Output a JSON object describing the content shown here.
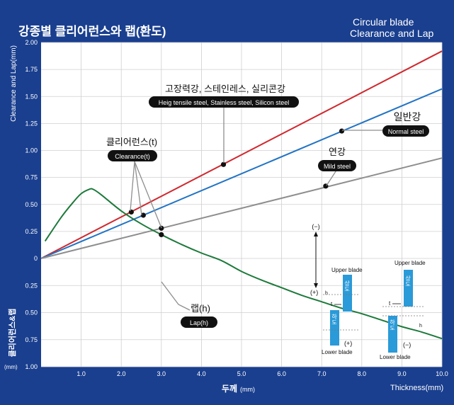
{
  "title_ko": "강종별 클리어런스와 랩(환도)",
  "title_en_line1": "Circular blade",
  "title_en_line2": "Clearance and Lap",
  "ylabel_top": "Clearance and Lap(mm)",
  "ylabel_bottom_ko": "클리어런스&랩",
  "ylabel_bottom_unit": "(mm)",
  "xlabel_ko": "두께",
  "xlabel_ko_unit": "(mm)",
  "xlabel_en": "Thickness(mm)",
  "callouts": {
    "hts_ko": "고장력강, 스테인레스, 실리콘강",
    "hts_en": "Heig tensile steel, Stainless steel, Silicon steel",
    "normal_ko": "일반강",
    "normal_en": "Normal steel",
    "mild_ko": "연강",
    "mild_en": "Mild steel",
    "clearance_ko": "클리어런스(t)",
    "clearance_en": "Clearance(t)",
    "lap_ko": "랩(h)",
    "lap_en": "Lap(h)"
  },
  "inset": {
    "minus_top": "(−)",
    "plus_left": "(+)",
    "t_label": "t",
    "h_label_a": "h",
    "h_label_b": "h",
    "upper_ko": "상도",
    "lower_ko": "하도",
    "upper_en": "Upper blade",
    "lower_en": "Lower blade",
    "plus_right": "(+)",
    "minus_right": "(−)"
  },
  "colors": {
    "background": "#1a3f8f",
    "plot": "#ffffff",
    "hts": "#d0282e",
    "normal": "#2173c4",
    "mild": "#8e8e8e",
    "lap": "#1c7a3a",
    "blade": "#2a9ad8"
  },
  "chart_data": {
    "type": "line",
    "xlim": [
      0,
      10
    ],
    "x_ticks": [
      "1.0",
      "2.0",
      "3.0",
      "4.0",
      "5.0",
      "6.0",
      "7.0",
      "8.0",
      "9.0",
      "10.0"
    ],
    "y_ticks_top": [
      "2.00",
      "1.75",
      "1.50",
      "1.25",
      "1.00",
      "0.75",
      "0.50",
      "0.25"
    ],
    "y_tick_zero": "0",
    "y_ticks_bottom": [
      "0.25",
      "0.50",
      "0.75",
      "1.00"
    ],
    "clearance_ylim": [
      0,
      2
    ],
    "lap_ylim": [
      0,
      1
    ],
    "grid": true,
    "series": [
      {
        "key": "hts",
        "x": [
          0,
          10
        ],
        "y": [
          0,
          1.92
        ]
      },
      {
        "key": "normal",
        "x": [
          0,
          10
        ],
        "y": [
          0,
          1.57
        ]
      },
      {
        "key": "mild",
        "x": [
          0,
          10
        ],
        "y": [
          0,
          0.93
        ]
      },
      {
        "key": "lap",
        "x": [
          0.1,
          0.5,
          0.8,
          1.0,
          1.2,
          1.3,
          1.5,
          2.0,
          2.5,
          3.0,
          3.5,
          4.0,
          4.5,
          5.0,
          5.5,
          6.0,
          6.5,
          7.0,
          7.5,
          8.0,
          8.5,
          9.0,
          9.5,
          10.0
        ],
        "y": [
          0.16,
          0.38,
          0.52,
          0.6,
          0.64,
          0.64,
          0.59,
          0.44,
          0.32,
          0.22,
          0.13,
          0.05,
          -0.02,
          -0.12,
          -0.2,
          -0.27,
          -0.34,
          -0.4,
          -0.46,
          -0.51,
          -0.57,
          -0.63,
          -0.68,
          -0.74
        ]
      }
    ],
    "markers": [
      {
        "series": "hts",
        "x": 2.25,
        "y": 0.43
      },
      {
        "series": "normal",
        "x": 2.55,
        "y": 0.4
      },
      {
        "series": "mild",
        "x": 3.0,
        "y": 0.28
      },
      {
        "series": "hts",
        "x": 4.55,
        "y": 0.87
      },
      {
        "series": "normal",
        "x": 7.5,
        "y": 1.18
      },
      {
        "series": "mild",
        "x": 7.1,
        "y": 0.67
      },
      {
        "series": "lap",
        "x": 3.0,
        "y": 0.22
      }
    ]
  }
}
